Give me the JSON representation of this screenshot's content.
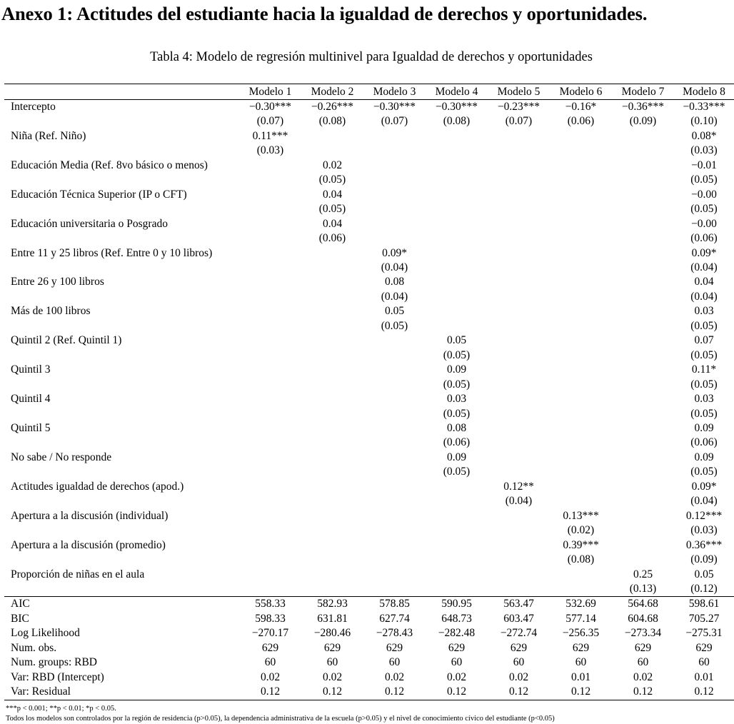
{
  "heading": "Anexo 1: Actitudes del estudiante hacia la igualdad de derechos y oportunidades.",
  "caption": "Tabla 4: Modelo de regresión multinivel para Igualdad de derechos y oportunidades",
  "columns": [
    "Modelo 1",
    "Modelo 2",
    "Modelo 3",
    "Modelo 4",
    "Modelo 5",
    "Modelo 6",
    "Modelo 7",
    "Modelo 8"
  ],
  "coef_rows": [
    {
      "label": "Intercepto",
      "est": [
        "−0.30***",
        "−0.26***",
        "−0.30***",
        "−0.30***",
        "−0.23***",
        "−0.16*",
        "−0.36***",
        "−0.33***"
      ],
      "se": [
        "(0.07)",
        "(0.08)",
        "(0.07)",
        "(0.08)",
        "(0.07)",
        "(0.06)",
        "(0.09)",
        "(0.10)"
      ]
    },
    {
      "label": "Niña (Ref. Niño)",
      "est": [
        "0.11***",
        "",
        "",
        "",
        "",
        "",
        "",
        "0.08*"
      ],
      "se": [
        "(0.03)",
        "",
        "",
        "",
        "",
        "",
        "",
        "(0.03)"
      ]
    },
    {
      "label": "Educación Media (Ref. 8vo básico o menos)",
      "est": [
        "",
        "0.02",
        "",
        "",
        "",
        "",
        "",
        "−0.01"
      ],
      "se": [
        "",
        "(0.05)",
        "",
        "",
        "",
        "",
        "",
        "(0.05)"
      ]
    },
    {
      "label": "Educación Técnica Superior (IP o CFT)",
      "est": [
        "",
        "0.04",
        "",
        "",
        "",
        "",
        "",
        "−0.00"
      ],
      "se": [
        "",
        "(0.05)",
        "",
        "",
        "",
        "",
        "",
        "(0.05)"
      ]
    },
    {
      "label": "Educación universitaria o Posgrado",
      "est": [
        "",
        "0.04",
        "",
        "",
        "",
        "",
        "",
        "−0.00"
      ],
      "se": [
        "",
        "(0.06)",
        "",
        "",
        "",
        "",
        "",
        "(0.06)"
      ]
    },
    {
      "label": "Entre 11 y 25 libros (Ref. Entre 0 y 10 libros)",
      "est": [
        "",
        "",
        "0.09*",
        "",
        "",
        "",
        "",
        "0.09*"
      ],
      "se": [
        "",
        "",
        "(0.04)",
        "",
        "",
        "",
        "",
        "(0.04)"
      ]
    },
    {
      "label": "Entre 26 y 100 libros",
      "est": [
        "",
        "",
        "0.08",
        "",
        "",
        "",
        "",
        "0.04"
      ],
      "se": [
        "",
        "",
        "(0.04)",
        "",
        "",
        "",
        "",
        "(0.04)"
      ]
    },
    {
      "label": "Más de 100 libros",
      "est": [
        "",
        "",
        "0.05",
        "",
        "",
        "",
        "",
        "0.03"
      ],
      "se": [
        "",
        "",
        "(0.05)",
        "",
        "",
        "",
        "",
        "(0.05)"
      ]
    },
    {
      "label": "Quintil 2 (Ref. Quintil 1)",
      "est": [
        "",
        "",
        "",
        "0.05",
        "",
        "",
        "",
        "0.07"
      ],
      "se": [
        "",
        "",
        "",
        "(0.05)",
        "",
        "",
        "",
        "(0.05)"
      ]
    },
    {
      "label": "Quintil 3",
      "est": [
        "",
        "",
        "",
        "0.09",
        "",
        "",
        "",
        "0.11*"
      ],
      "se": [
        "",
        "",
        "",
        "(0.05)",
        "",
        "",
        "",
        "(0.05)"
      ]
    },
    {
      "label": "Quintil 4",
      "est": [
        "",
        "",
        "",
        "0.03",
        "",
        "",
        "",
        "0.03"
      ],
      "se": [
        "",
        "",
        "",
        "(0.05)",
        "",
        "",
        "",
        "(0.05)"
      ]
    },
    {
      "label": "Quintil 5",
      "est": [
        "",
        "",
        "",
        "0.08",
        "",
        "",
        "",
        "0.09"
      ],
      "se": [
        "",
        "",
        "",
        "(0.06)",
        "",
        "",
        "",
        "(0.06)"
      ]
    },
    {
      "label": "No sabe / No responde",
      "est": [
        "",
        "",
        "",
        "0.09",
        "",
        "",
        "",
        "0.09"
      ],
      "se": [
        "",
        "",
        "",
        "(0.05)",
        "",
        "",
        "",
        "(0.05)"
      ]
    },
    {
      "label": "Actitudes igualdad de derechos (apod.)",
      "est": [
        "",
        "",
        "",
        "",
        "0.12**",
        "",
        "",
        "0.09*"
      ],
      "se": [
        "",
        "",
        "",
        "",
        "(0.04)",
        "",
        "",
        "(0.04)"
      ]
    },
    {
      "label": "Apertura a la discusión (individual)",
      "est": [
        "",
        "",
        "",
        "",
        "",
        "0.13***",
        "",
        "0.12***"
      ],
      "se": [
        "",
        "",
        "",
        "",
        "",
        "(0.02)",
        "",
        "(0.03)"
      ]
    },
    {
      "label": "Apertura a la discusión (promedio)",
      "est": [
        "",
        "",
        "",
        "",
        "",
        "0.39***",
        "",
        "0.36***"
      ],
      "se": [
        "",
        "",
        "",
        "",
        "",
        "(0.08)",
        "",
        "(0.09)"
      ]
    },
    {
      "label": "Proporción de niñas en el aula",
      "est": [
        "",
        "",
        "",
        "",
        "",
        "",
        "0.25",
        "0.05"
      ],
      "se": [
        "",
        "",
        "",
        "",
        "",
        "",
        "(0.13)",
        "(0.12)"
      ]
    }
  ],
  "gof_rows": [
    {
      "label": "AIC",
      "values": [
        "558.33",
        "582.93",
        "578.85",
        "590.95",
        "563.47",
        "532.69",
        "564.68",
        "598.61"
      ]
    },
    {
      "label": "BIC",
      "values": [
        "598.33",
        "631.81",
        "627.74",
        "648.73",
        "603.47",
        "577.14",
        "604.68",
        "705.27"
      ]
    },
    {
      "label": "Log Likelihood",
      "values": [
        "−270.17",
        "−280.46",
        "−278.43",
        "−282.48",
        "−272.74",
        "−256.35",
        "−273.34",
        "−275.31"
      ]
    },
    {
      "label": "Num. obs.",
      "values": [
        "629",
        "629",
        "629",
        "629",
        "629",
        "629",
        "629",
        "629"
      ]
    },
    {
      "label": "Num. groups: RBD",
      "values": [
        "60",
        "60",
        "60",
        "60",
        "60",
        "60",
        "60",
        "60"
      ]
    },
    {
      "label": "Var: RBD (Intercept)",
      "values": [
        "0.02",
        "0.02",
        "0.02",
        "0.02",
        "0.02",
        "0.01",
        "0.02",
        "0.01"
      ]
    },
    {
      "label": "Var: Residual",
      "values": [
        "0.12",
        "0.12",
        "0.12",
        "0.12",
        "0.12",
        "0.12",
        "0.12",
        "0.12"
      ]
    }
  ],
  "footnotes": {
    "significance": "***p < 0.001; **p < 0.01; *p < 0.05.",
    "controls": "Todos los modelos son controlados por la región de residencia (p>0.05), la dependencia administrativa de la escuela (p>0.05) y el nivel de conocimiento cívico del estudiante (p<0.05)"
  }
}
